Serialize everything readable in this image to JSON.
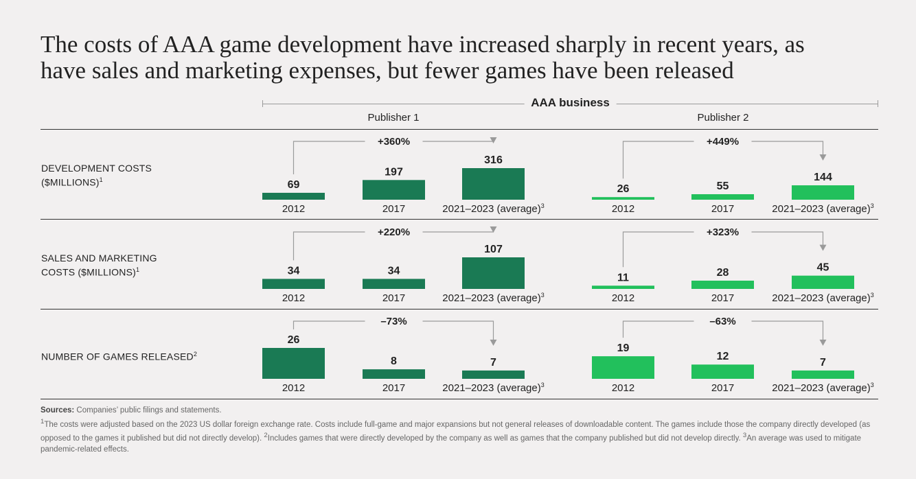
{
  "title": {
    "line1": "The costs of AAA game development have increased sharply in recent years, as",
    "line2": "have sales and marketing expenses, but fewer games have been released"
  },
  "group_label": "AAA business",
  "publishers": [
    "Publisher 1",
    "Publisher 2"
  ],
  "rows": [
    {
      "label_line1": "DEVELOPMENT COSTS",
      "label_line2": "($MILLIONS)",
      "footnote": "1"
    },
    {
      "label_line1": "SALES AND MARKETING",
      "label_line2": "COSTS ($MILLIONS)",
      "footnote": "1"
    },
    {
      "label_line1": "NUMBER OF GAMES RELEASED",
      "label_line2": "",
      "footnote": "2"
    }
  ],
  "colors": {
    "publisher1": "#1a7a54",
    "publisher2": "#22c05c",
    "connector": "#9a9a9a",
    "text": "#222222"
  },
  "chart_data": {
    "type": "bar",
    "categories": [
      "2012",
      "2017",
      "2021–2023 (average)"
    ],
    "category_footnote": [
      "",
      "",
      "3"
    ],
    "panels": [
      {
        "metric": "Development costs ($millions)",
        "series": [
          {
            "name": "Publisher 1",
            "values": [
              69,
              197,
              316
            ],
            "change": "+360%"
          },
          {
            "name": "Publisher 2",
            "values": [
              26,
              55,
              144
            ],
            "change": "+449%"
          }
        ]
      },
      {
        "metric": "Sales and marketing costs ($millions)",
        "series": [
          {
            "name": "Publisher 1",
            "values": [
              34,
              34,
              107
            ],
            "change": "+220%"
          },
          {
            "name": "Publisher 2",
            "values": [
              11,
              28,
              45
            ],
            "change": "+323%"
          }
        ]
      },
      {
        "metric": "Number of games released",
        "series": [
          {
            "name": "Publisher 1",
            "values": [
              26,
              8,
              7
            ],
            "change": "–73%"
          },
          {
            "name": "Publisher 2",
            "values": [
              19,
              12,
              7
            ],
            "change": "–63%"
          }
        ]
      }
    ]
  },
  "sources": {
    "label": "Sources:",
    "text": "Companies’ public filings and statements.",
    "note1": "The costs were adjusted based on the 2023 US dollar foreign exchange rate. Costs include full-game and major expansions but not general releases of downloadable content. The games include those the company directly developed (as opposed to the games it published but did not directly develop).",
    "note2": "Includes games that were directly developed by the company as well as games that the company published but did not develop directly.",
    "note3": "An average was used to mitigate pandemic-related effects."
  }
}
